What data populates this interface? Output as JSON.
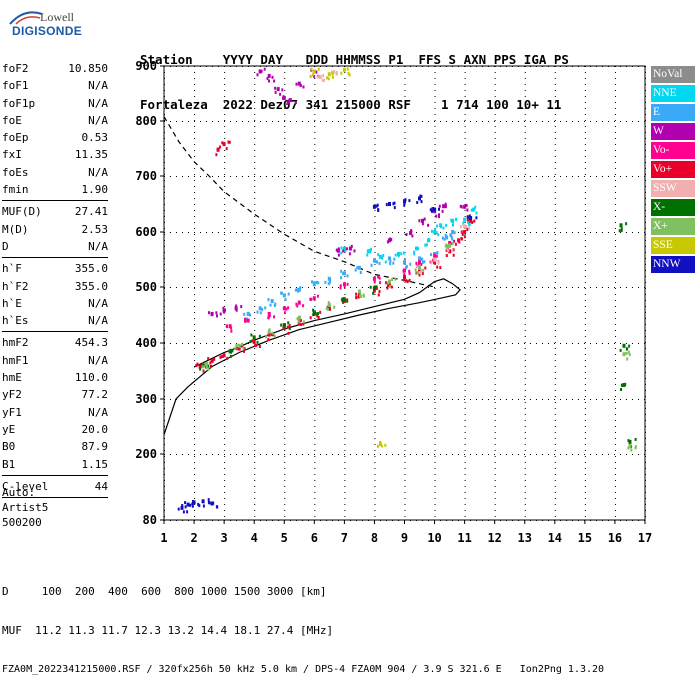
{
  "logo": {
    "line1": "Lowell",
    "line2": "DIGISONDE"
  },
  "header": {
    "row1": "Station    YYYY DAY   DDD HHMMSS P1  FFS S AXN PPS IGA PS",
    "row2": "Fortaleza  2022 Dez07 341 215000 RSF    1 714 100 10+ 11"
  },
  "params_group1": [
    {
      "name": "foF2",
      "value": "10.850"
    },
    {
      "name": "foF1",
      "value": "N/A"
    },
    {
      "name": "foF1p",
      "value": "N/A"
    },
    {
      "name": "foE",
      "value": "N/A"
    },
    {
      "name": "foEp",
      "value": "0.53"
    },
    {
      "name": "fxI",
      "value": "11.35"
    },
    {
      "name": "foEs",
      "value": "N/A"
    },
    {
      "name": "fmin",
      "value": "1.90"
    }
  ],
  "params_group2": [
    {
      "name": "MUF(D)",
      "value": "27.41"
    },
    {
      "name": "M(D)",
      "value": "2.53"
    },
    {
      "name": "D",
      "value": "N/A"
    }
  ],
  "params_group3": [
    {
      "name": "h`F",
      "value": "355.0"
    },
    {
      "name": "h`F2",
      "value": "355.0"
    },
    {
      "name": "h`E",
      "value": "N/A"
    },
    {
      "name": "h`Es",
      "value": "N/A"
    }
  ],
  "params_group4": [
    {
      "name": "hmF2",
      "value": "454.3"
    },
    {
      "name": "hmF1",
      "value": "N/A"
    },
    {
      "name": "hmE",
      "value": "110.0"
    },
    {
      "name": "yF2",
      "value": "77.2"
    },
    {
      "name": "yF1",
      "value": "N/A"
    },
    {
      "name": "yE",
      "value": "20.0"
    },
    {
      "name": "B0",
      "value": "87.9"
    },
    {
      "name": "B1",
      "value": "1.15"
    }
  ],
  "params_group5": [
    {
      "name": "C-level",
      "value": "44"
    }
  ],
  "autoscaling": {
    "line1": "Auto:",
    "line2": "Artist5",
    "line3": "500200"
  },
  "legend": [
    {
      "label": "NoVal",
      "color": "#8c8c8c"
    },
    {
      "label": "NNE",
      "color": "#00d8f0"
    },
    {
      "label": "E",
      "color": "#3aaaf8"
    },
    {
      "label": "W",
      "color": "#b000b0"
    },
    {
      "label": "Vo-",
      "color": "#ff0090"
    },
    {
      "label": "Vo+",
      "color": "#e8002a"
    },
    {
      "label": "SSW",
      "color": "#f0b0b0"
    },
    {
      "label": "X-",
      "color": "#007000"
    },
    {
      "label": "X+",
      "color": "#80c060"
    },
    {
      "label": "SSE",
      "color": "#c8c800"
    },
    {
      "label": "NNW",
      "color": "#1010c0"
    }
  ],
  "footer": {
    "d_row": "D     100  200  400  600  800 1000 1500 3000 [km]",
    "muf_row": "MUF  11.2 11.3 11.7 12.3 13.2 14.4 18.1 27.4 [MHz]",
    "file_row": "FZA0M_2022341215000.RSF / 320fx256h 50 kHz 5.0 km / DPS-4 FZA0M 904 / 3.9 S 321.6 E   Ion2Png 1.3.20"
  },
  "chart_data": {
    "type": "scatter",
    "x_ticks": [
      "1",
      "2",
      "3",
      "4",
      "5",
      "6",
      "7",
      "8",
      "9",
      "10",
      "11",
      "12",
      "13",
      "14",
      "15",
      "16",
      "17"
    ],
    "y_ticks": [
      "80",
      "200",
      "300",
      "400",
      "500",
      "600",
      "700",
      "800",
      "900"
    ],
    "xlim": [
      1,
      17
    ],
    "ylim": [
      80,
      900
    ],
    "grid": true,
    "profile_solid": [
      [
        2.0,
        357
      ],
      [
        2.5,
        370
      ],
      [
        3.0,
        383
      ],
      [
        3.5,
        393
      ],
      [
        4.0,
        405
      ],
      [
        5.0,
        425
      ],
      [
        6.0,
        440
      ],
      [
        7.0,
        452
      ],
      [
        8.0,
        465
      ],
      [
        9.0,
        478
      ],
      [
        9.5,
        490
      ],
      [
        10.0,
        510
      ],
      [
        10.3,
        515
      ],
      [
        10.6,
        506
      ],
      [
        10.85,
        495
      ],
      [
        10.7,
        486
      ],
      [
        10.2,
        480
      ],
      [
        9.5,
        472
      ],
      [
        8.5,
        462
      ],
      [
        7.5,
        450
      ],
      [
        6.5,
        437
      ],
      [
        5.5,
        424
      ],
      [
        4.5,
        405
      ],
      [
        3.5,
        383
      ],
      [
        2.6,
        358
      ],
      [
        2.2,
        340
      ],
      [
        1.8,
        322
      ],
      [
        1.4,
        300
      ],
      [
        1.0,
        235
      ]
    ],
    "profile_dashed": [
      [
        1.0,
        808
      ],
      [
        1.5,
        762
      ],
      [
        2.0,
        726
      ],
      [
        2.5,
        700
      ],
      [
        3.0,
        672
      ],
      [
        4.0,
        632
      ],
      [
        5.0,
        596
      ],
      [
        6.0,
        565
      ],
      [
        7.0,
        546
      ],
      [
        8.0,
        523
      ],
      [
        9.0,
        512
      ],
      [
        10.0,
        500
      ]
    ],
    "series": [
      {
        "name": "NNE",
        "color": "#00d8f0",
        "points": [
          [
            7.0,
            570
          ],
          [
            7.8,
            565
          ],
          [
            8.2,
            555
          ],
          [
            8.8,
            560
          ],
          [
            9.4,
            570
          ],
          [
            9.8,
            585
          ],
          [
            10.0,
            600
          ],
          [
            10.2,
            612
          ],
          [
            10.6,
            620
          ],
          [
            11.0,
            622
          ],
          [
            11.3,
            640
          ]
        ]
      },
      {
        "name": "E",
        "color": "#3aaaf8",
        "points": [
          [
            3.8,
            452
          ],
          [
            4.2,
            462
          ],
          [
            4.6,
            475
          ],
          [
            5.0,
            485
          ],
          [
            5.5,
            495
          ],
          [
            6.0,
            505
          ],
          [
            6.5,
            515
          ],
          [
            7.0,
            525
          ],
          [
            7.5,
            535
          ],
          [
            8.0,
            548
          ],
          [
            8.5,
            552
          ],
          [
            9.0,
            545
          ],
          [
            9.5,
            552
          ],
          [
            10.0,
            560
          ],
          [
            10.4,
            590
          ],
          [
            10.6,
            600
          ]
        ]
      },
      {
        "name": "W",
        "color": "#b000b0",
        "points": [
          [
            2.6,
            452
          ],
          [
            3.0,
            458
          ],
          [
            3.4,
            462
          ],
          [
            4.2,
            890
          ],
          [
            4.5,
            882
          ],
          [
            4.8,
            858
          ],
          [
            5.0,
            842
          ],
          [
            5.2,
            838
          ],
          [
            5.5,
            868
          ],
          [
            6.0,
            890
          ],
          [
            6.8,
            566
          ],
          [
            7.2,
            570
          ],
          [
            8.5,
            585
          ],
          [
            9.2,
            598
          ],
          [
            9.6,
            620
          ],
          [
            10.0,
            637
          ],
          [
            10.3,
            646
          ],
          [
            11.0,
            645
          ]
        ]
      },
      {
        "name": "Vo-",
        "color": "#ff0090",
        "points": [
          [
            3.2,
            430
          ],
          [
            3.8,
            440
          ],
          [
            4.5,
            452
          ],
          [
            5.0,
            462
          ],
          [
            5.5,
            472
          ],
          [
            6.0,
            480
          ],
          [
            7.0,
            505
          ],
          [
            8.0,
            515
          ],
          [
            9.0,
            530
          ],
          [
            9.5,
            545
          ],
          [
            10.0,
            555
          ],
          [
            10.5,
            580
          ]
        ]
      },
      {
        "name": "Vo+",
        "color": "#e8002a",
        "points": [
          [
            2.2,
            358
          ],
          [
            2.6,
            368
          ],
          [
            3.0,
            378
          ],
          [
            3.5,
            390
          ],
          [
            4.0,
            402
          ],
          [
            4.5,
            415
          ],
          [
            5.0,
            427
          ],
          [
            5.5,
            440
          ],
          [
            6.0,
            452
          ],
          [
            6.5,
            462
          ],
          [
            7.0,
            475
          ],
          [
            7.5,
            485
          ],
          [
            8.0,
            495
          ],
          [
            8.5,
            505
          ],
          [
            9.0,
            518
          ],
          [
            9.5,
            530
          ],
          [
            10.0,
            545
          ],
          [
            10.5,
            565
          ],
          [
            10.8,
            585
          ],
          [
            11.0,
            600
          ],
          [
            11.2,
            620
          ],
          [
            2.8,
            748
          ],
          [
            3.0,
            758
          ]
        ]
      },
      {
        "name": "SSW",
        "color": "#f0b0b0",
        "points": [
          [
            9.5,
            535
          ],
          [
            10.0,
            550
          ],
          [
            10.5,
            575
          ],
          [
            11.0,
            610
          ],
          [
            6.2,
            880
          ],
          [
            6.6,
            888
          ]
        ]
      },
      {
        "name": "X-",
        "color": "#007000",
        "points": [
          [
            2.3,
            360
          ],
          [
            3.2,
            385
          ],
          [
            4.0,
            410
          ],
          [
            5.0,
            432
          ],
          [
            6.0,
            455
          ],
          [
            7.0,
            478
          ],
          [
            8.0,
            498
          ],
          [
            16.2,
            612
          ],
          [
            16.3,
            395
          ],
          [
            16.3,
            325
          ],
          [
            16.5,
            222
          ]
        ]
      },
      {
        "name": "X+",
        "color": "#80c060",
        "points": [
          [
            2.4,
            362
          ],
          [
            3.5,
            395
          ],
          [
            4.5,
            420
          ],
          [
            5.5,
            445
          ],
          [
            6.5,
            468
          ],
          [
            7.5,
            492
          ],
          [
            8.5,
            510
          ],
          [
            9.5,
            535
          ],
          [
            10.5,
            575
          ],
          [
            16.3,
            380
          ],
          [
            16.5,
            215
          ]
        ]
      },
      {
        "name": "SSE",
        "color": "#c8c800",
        "points": [
          [
            6.0,
            890
          ],
          [
            6.5,
            885
          ],
          [
            7.0,
            893
          ],
          [
            8.2,
            218
          ]
        ]
      },
      {
        "name": "NNW",
        "color": "#1010c0",
        "points": [
          [
            1.6,
            102
          ],
          [
            1.8,
            108
          ],
          [
            2.0,
            112
          ],
          [
            2.3,
            114
          ],
          [
            2.6,
            110
          ],
          [
            8.0,
            645
          ],
          [
            8.5,
            650
          ],
          [
            9.0,
            655
          ],
          [
            9.5,
            660
          ],
          [
            10.0,
            640
          ],
          [
            11.2,
            625
          ]
        ]
      }
    ]
  }
}
